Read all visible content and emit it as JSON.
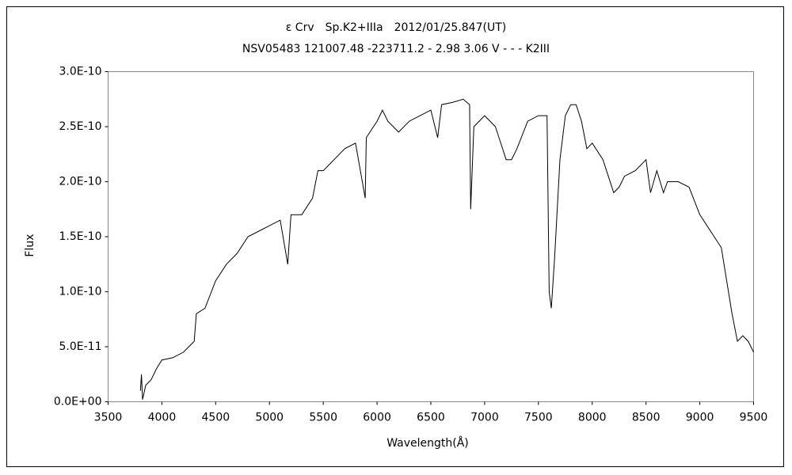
{
  "chart_data": {
    "type": "line",
    "title": "ε Crv　Sp.K2+IIIa　2012/01/25.847(UT)",
    "subtitle": "NSV05483 121007.48 -223711.2 - 2.98 3.06 V - - - K2III",
    "x_label": "Wavelength(Å)",
    "y_label": "Flux",
    "x": [
      3800,
      3810,
      3820,
      3850,
      3900,
      3950,
      4000,
      4100,
      4200,
      4300,
      4320,
      4400,
      4500,
      4600,
      4700,
      4800,
      4900,
      5000,
      5100,
      5170,
      5200,
      5300,
      5400,
      5450,
      5500,
      5600,
      5700,
      5800,
      5890,
      5900,
      6000,
      6050,
      6100,
      6200,
      6300,
      6400,
      6500,
      6563,
      6600,
      6700,
      6800,
      6860,
      6870,
      6900,
      7000,
      7100,
      7200,
      7250,
      7300,
      7400,
      7500,
      7580,
      7600,
      7620,
      7650,
      7700,
      7750,
      7800,
      7850,
      7900,
      7950,
      8000,
      8100,
      8200,
      8250,
      8300,
      8400,
      8500,
      8542,
      8600,
      8662,
      8700,
      8800,
      8900,
      9000,
      9100,
      9200,
      9250,
      9300,
      9350,
      9400,
      9450,
      9500
    ],
    "series": [
      {
        "name": "Flux",
        "color": "#000000",
        "values": [
          1e-11,
          2.5e-11,
          2e-12,
          1.5e-11,
          2e-11,
          3e-11,
          3.8e-11,
          4e-11,
          4.5e-11,
          5.5e-11,
          8e-11,
          8.5e-11,
          1.1e-10,
          1.25e-10,
          1.35e-10,
          1.5e-10,
          1.55e-10,
          1.6e-10,
          1.65e-10,
          1.25e-10,
          1.7e-10,
          1.7e-10,
          1.85e-10,
          2.1e-10,
          2.1e-10,
          2.2e-10,
          2.3e-10,
          2.35e-10,
          1.85e-10,
          2.4e-10,
          2.55e-10,
          2.65e-10,
          2.55e-10,
          2.45e-10,
          2.55e-10,
          2.6e-10,
          2.65e-10,
          2.4e-10,
          2.7e-10,
          2.72e-10,
          2.75e-10,
          2.7e-10,
          1.75e-10,
          2.5e-10,
          2.6e-10,
          2.5e-10,
          2.2e-10,
          2.2e-10,
          2.3e-10,
          2.55e-10,
          2.6e-10,
          2.6e-10,
          1e-10,
          8.5e-11,
          1.3e-10,
          2.2e-10,
          2.6e-10,
          2.7e-10,
          2.7e-10,
          2.55e-10,
          2.3e-10,
          2.35e-10,
          2.2e-10,
          1.9e-10,
          1.95e-10,
          2.05e-10,
          2.1e-10,
          2.2e-10,
          1.9e-10,
          2.1e-10,
          1.9e-10,
          2e-10,
          2e-10,
          1.95e-10,
          1.7e-10,
          1.55e-10,
          1.4e-10,
          1.1e-10,
          8e-11,
          5.5e-11,
          6e-11,
          5.5e-11,
          4.5e-11
        ]
      }
    ],
    "xlim": [
      3500,
      9500
    ],
    "ylim": [
      0,
      3e-10
    ],
    "xticks": [
      3500,
      4000,
      4500,
      5000,
      5500,
      6000,
      6500,
      7000,
      7500,
      8000,
      8500,
      9000,
      9500
    ],
    "yticks": [
      {
        "value": 0,
        "label": "0.0E+00"
      },
      {
        "value": 5e-11,
        "label": "5.0E-11"
      },
      {
        "value": 1e-10,
        "label": "1.0E-10"
      },
      {
        "value": 1.5e-10,
        "label": "1.5E-10"
      },
      {
        "value": 2e-10,
        "label": "2.0E-10"
      },
      {
        "value": 2.5e-10,
        "label": "2.5E-10"
      },
      {
        "value": 3e-10,
        "label": "3.0E-10"
      }
    ]
  }
}
